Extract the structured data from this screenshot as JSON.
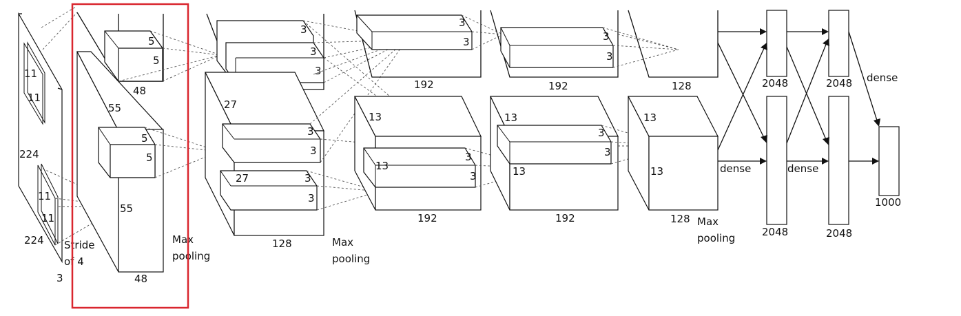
{
  "diagram": {
    "input": {
      "dims": [
        "224",
        "224",
        "3"
      ],
      "kernel": [
        "11",
        "11"
      ],
      "stride": "Stride\nof 4"
    },
    "conv1": {
      "size": "55",
      "kernel": [
        "5",
        "5"
      ],
      "depth_top": "48",
      "depth_bottom": "48",
      "pool": "Max\npooling"
    },
    "conv2": {
      "size": "27",
      "kernel": [
        "3",
        "3"
      ],
      "depth_top": "128",
      "depth_bottom": "128",
      "pool": "Max\npooling"
    },
    "conv3": {
      "size": "13",
      "kernel": [
        "3",
        "3"
      ],
      "depth_top": "192",
      "depth_bottom": "192"
    },
    "conv4": {
      "size": "13",
      "kernel": [
        "3",
        "3"
      ],
      "depth_top": "192",
      "depth_bottom": "192"
    },
    "conv5": {
      "size": "13",
      "depth_top": "128",
      "depth_bottom": "128",
      "pool": "Max\npooling"
    },
    "fc": {
      "size": "2048",
      "dense": "dense",
      "output": "1000"
    },
    "highlight_color": "#d9262e"
  }
}
